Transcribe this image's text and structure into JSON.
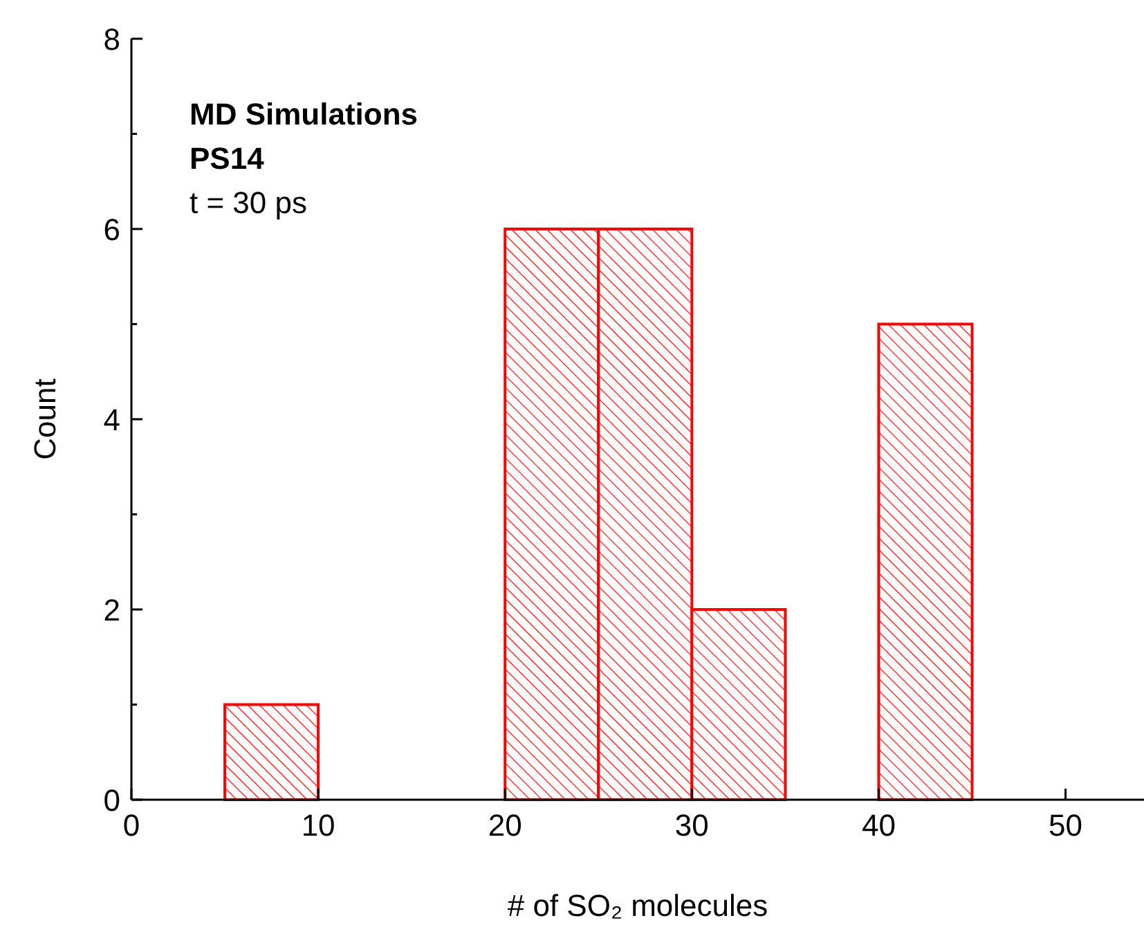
{
  "chart_data": {
    "type": "histogram",
    "xlabel": "# of SO₂ molecules",
    "ylabel": "Count",
    "annotations": [
      "MD Simulations",
      "PS14",
      "t = 30 ps"
    ],
    "bins": [
      5,
      10,
      15,
      20,
      25,
      30,
      35,
      40,
      45
    ],
    "values": [
      1,
      0,
      0,
      6,
      6,
      2,
      0,
      5
    ],
    "color": "#ff0000",
    "xlim": [
      0,
      54.2
    ],
    "xticks": [
      0,
      10,
      20,
      30,
      40,
      50
    ],
    "ylim": [
      0,
      8
    ],
    "yticks": [
      0,
      {
        "value": 1,
        "label": null
      },
      2,
      {
        "value": 3,
        "label": null
      },
      4,
      {
        "value": 5,
        "label": null
      },
      6,
      {
        "value": 7,
        "label": null
      },
      8
    ],
    "grid": false
  }
}
